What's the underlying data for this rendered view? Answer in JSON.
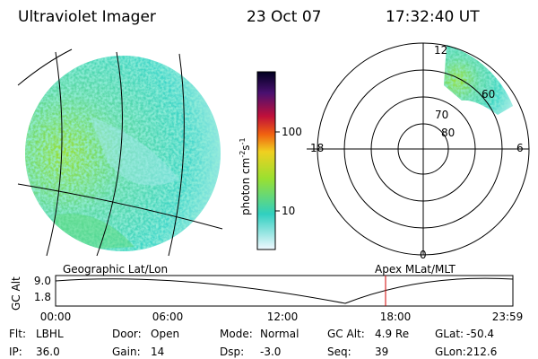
{
  "header": {
    "title": "Ultraviolet Imager",
    "date": "23 Oct 07",
    "time": "17:32:40 UT"
  },
  "colorbar": {
    "unit": "photon cm",
    "exp1": "-2",
    "unit2": "s",
    "exp2": "-1",
    "ticks": [
      "100",
      "10"
    ]
  },
  "polar": {
    "mlt": {
      "top": "12",
      "left": "18",
      "right": "6",
      "bottom": "0"
    },
    "rings": [
      "80",
      "70",
      "60"
    ]
  },
  "timeline": {
    "left_label": "Geographic Lat/Lon",
    "right_label": "Apex MLat/MLT",
    "ylabel": "GC Alt",
    "yticks": [
      "9.0",
      "1.8"
    ],
    "xticks": [
      "00:00",
      "06:00",
      "12:00",
      "18:00",
      "23:59"
    ]
  },
  "footer": {
    "rows": [
      [
        [
          "Flt:",
          "LBHL"
        ],
        [
          "Door:",
          "Open"
        ],
        [
          "Mode:",
          "Normal"
        ],
        [
          "GC Alt:",
          "4.9 Re"
        ],
        [
          "GLat:",
          "-50.4"
        ]
      ],
      [
        [
          "IP:",
          "36.0"
        ],
        [
          "Gain:",
          "14"
        ],
        [
          "Dsp:",
          "-3.0"
        ],
        [
          "Seq:",
          "39"
        ],
        [
          "GLon:",
          "212.6"
        ]
      ]
    ]
  }
}
